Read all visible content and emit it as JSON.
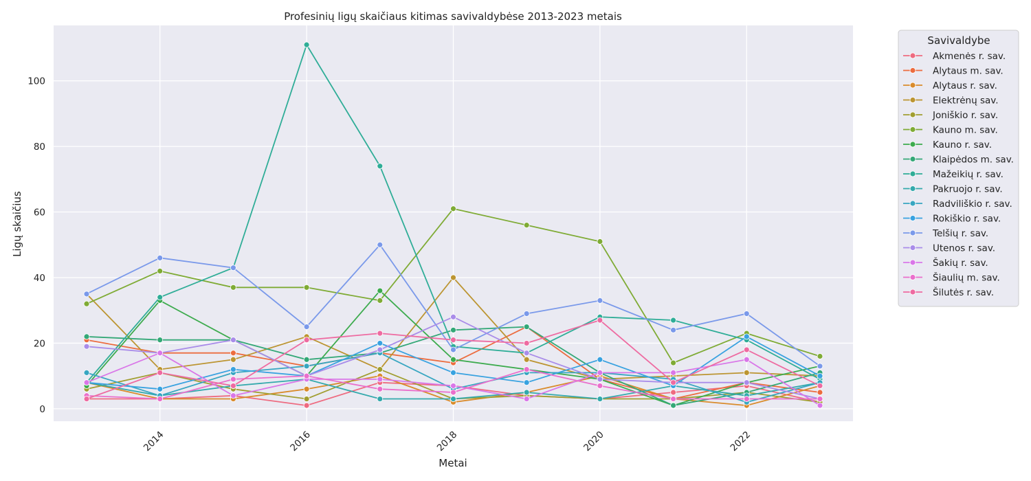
{
  "chart_data": {
    "type": "line",
    "title": "Profesinių ligų skaičiaus kitimas savivaldybėse 2013-2023 metais",
    "xlabel": "Metai",
    "ylabel": "Ligų skaičius",
    "x": [
      2013,
      2014,
      2015,
      2016,
      2017,
      2018,
      2019,
      2020,
      2021,
      2022,
      2023
    ],
    "xlim": [
      2012.55,
      2023.45
    ],
    "ylim": [
      -3.8,
      116.9
    ],
    "xticks": [
      2014,
      2016,
      2018,
      2020,
      2022
    ],
    "yticks": [
      0,
      20,
      40,
      60,
      80,
      100
    ],
    "grid": true,
    "legend": {
      "title": "Savivaldybe",
      "placement": "outside-right"
    },
    "series": [
      {
        "name": "Akmenės r. sav.",
        "color": "#ee6b80",
        "values": [
          3,
          3,
          4,
          1,
          8,
          7,
          4,
          3,
          5,
          7,
          2
        ]
      },
      {
        "name": "Alytaus m. sav.",
        "color": "#ec6c3f",
        "values": [
          21,
          17,
          17,
          13,
          17,
          14,
          25,
          9,
          3,
          8,
          5
        ]
      },
      {
        "name": "Alytaus r. sav.",
        "color": "#d98b2b",
        "values": [
          8,
          3,
          3,
          6,
          10,
          2,
          5,
          10,
          3,
          1,
          7
        ]
      },
      {
        "name": "Elektrėnų sav.",
        "color": "#bc9532",
        "values": [
          35,
          12,
          15,
          22,
          12,
          40,
          15,
          9,
          10,
          11,
          10
        ]
      },
      {
        "name": "Joniškio r. sav.",
        "color": "#a19e31",
        "values": [
          6,
          11,
          6,
          3,
          12,
          3,
          4,
          3,
          3,
          5,
          2
        ]
      },
      {
        "name": "Kauno m. sav.",
        "color": "#7fab35",
        "values": [
          32,
          42,
          37,
          37,
          33,
          61,
          56,
          51,
          14,
          23,
          16
        ]
      },
      {
        "name": "Kauno r. sav.",
        "color": "#3dab4e",
        "values": [
          7,
          33,
          21,
          10,
          36,
          15,
          12,
          9,
          1,
          8,
          13
        ]
      },
      {
        "name": "Klaipėdos m. sav.",
        "color": "#34a877",
        "values": [
          22,
          21,
          21,
          15,
          17,
          24,
          25,
          11,
          1,
          5,
          11
        ]
      },
      {
        "name": "Mažeikių r. sav.",
        "color": "#2fad97",
        "values": [
          8,
          34,
          43,
          111,
          74,
          19,
          17,
          28,
          27,
          21,
          9
        ]
      },
      {
        "name": "Pakruojo r. sav.",
        "color": "#33a9ac",
        "values": [
          8,
          4,
          7,
          9,
          3,
          3,
          5,
          3,
          7,
          4,
          8
        ]
      },
      {
        "name": "Radviliškio r. sav.",
        "color": "#38a6c1",
        "values": [
          11,
          4,
          11,
          13,
          17,
          6,
          11,
          11,
          9,
          2,
          8
        ]
      },
      {
        "name": "Rokiškio r. sav.",
        "color": "#39a2e0",
        "values": [
          8,
          6,
          12,
          10,
          20,
          11,
          8,
          15,
          7,
          22,
          10
        ]
      },
      {
        "name": "Telšių r. sav.",
        "color": "#7a99ea",
        "values": [
          35,
          46,
          43,
          25,
          50,
          18,
          29,
          33,
          24,
          29,
          13
        ]
      },
      {
        "name": "Utenos r. sav.",
        "color": "#a98ce9",
        "values": [
          19,
          17,
          21,
          10,
          18,
          28,
          17,
          9,
          8,
          8,
          3
        ]
      },
      {
        "name": "Šakių r. sav.",
        "color": "#d977e8",
        "values": [
          8,
          17,
          4,
          9,
          9,
          7,
          3,
          11,
          11,
          15,
          1
        ]
      },
      {
        "name": "Šiaulių m. sav.",
        "color": "#ea6fcc",
        "values": [
          4,
          3,
          9,
          10,
          6,
          5,
          12,
          7,
          3,
          3,
          3
        ]
      },
      {
        "name": "Šilutės r. sav.",
        "color": "#ee6ba1",
        "values": [
          3,
          11,
          7,
          21,
          23,
          21,
          20,
          27,
          8,
          18,
          7
        ]
      }
    ]
  }
}
